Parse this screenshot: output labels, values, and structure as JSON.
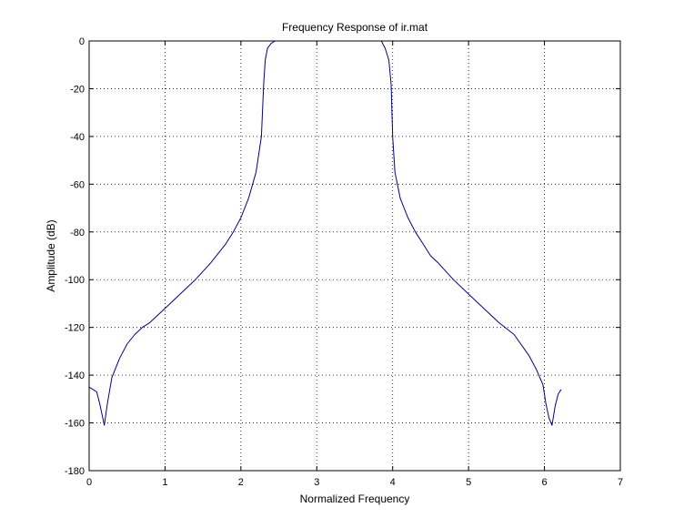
{
  "chart_data": {
    "type": "line",
    "title": "Frequency Response of ir.mat",
    "xlabel": "Normalized Frequency",
    "ylabel": "Amplitude (dB)",
    "xlim": [
      0,
      7
    ],
    "ylim": [
      -180,
      0
    ],
    "xticks": [
      0,
      1,
      2,
      3,
      4,
      5,
      6,
      7
    ],
    "yticks": [
      0,
      -20,
      -40,
      -60,
      -80,
      -100,
      -120,
      -140,
      -160,
      -180
    ],
    "grid": true,
    "grid_style": "dotted",
    "series": [
      {
        "color": "#00008b",
        "x": [
          0.0,
          0.05,
          0.1,
          0.14,
          0.18,
          0.2,
          0.24,
          0.3,
          0.4,
          0.5,
          0.6,
          0.7,
          0.8,
          1.0,
          1.2,
          1.4,
          1.6,
          1.8,
          1.9,
          2.0,
          2.1,
          2.2,
          2.27,
          2.3,
          2.32,
          2.35,
          2.4,
          2.45,
          2.5,
          3.85,
          3.9,
          3.95,
          3.98,
          4.0,
          4.03,
          4.1,
          4.2,
          4.3,
          4.4,
          4.5,
          4.6,
          4.8,
          5.0,
          5.2,
          5.4,
          5.6,
          5.8,
          5.9,
          5.98,
          6.02,
          6.06,
          6.1,
          6.14,
          6.18,
          6.22
        ],
        "y": [
          -145,
          -146,
          -147,
          -152,
          -158,
          -161,
          -152,
          -141,
          -133,
          -127,
          -123,
          -120,
          -118,
          -112,
          -106,
          -100,
          -93,
          -85,
          -80,
          -74,
          -66,
          -55,
          -40,
          -18,
          -8,
          -3,
          -1,
          0,
          0,
          0,
          -3,
          -8,
          -18,
          -40,
          -55,
          -66,
          -74,
          -80,
          -85,
          -90,
          -93,
          -100,
          -106,
          -112,
          -118,
          -123,
          -132,
          -138,
          -144,
          -152,
          -158,
          -161,
          -153,
          -148,
          -146
        ]
      }
    ]
  }
}
